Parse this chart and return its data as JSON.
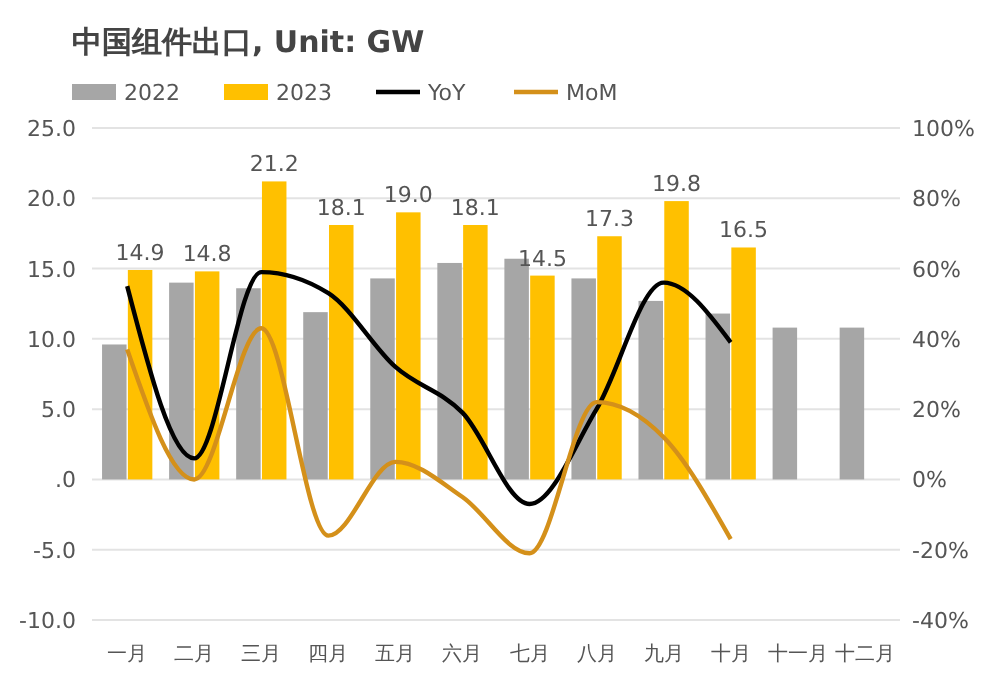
{
  "chart_data": {
    "type": "bar",
    "title": "中国组件出口, Unit: GW",
    "categories": [
      "一月",
      "二月",
      "三月",
      "四月",
      "五月",
      "六月",
      "七月",
      "八月",
      "九月",
      "十月",
      "十一月",
      "十二月"
    ],
    "series": [
      {
        "name": "2022",
        "color": "#a6a6a6",
        "values": [
          9.6,
          14.0,
          13.6,
          11.9,
          14.3,
          15.4,
          15.7,
          14.3,
          12.7,
          11.8,
          10.8,
          10.8
        ]
      },
      {
        "name": "2023",
        "color": "#ffc000",
        "values": [
          14.9,
          14.8,
          21.2,
          18.1,
          19.0,
          18.1,
          14.5,
          17.3,
          19.8,
          16.5,
          null,
          null
        ],
        "value_labels": [
          "14.9",
          "14.8",
          "21.2",
          "18.1",
          "19.0",
          "18.1",
          "14.5",
          "17.3",
          "19.8",
          "16.5",
          null,
          null
        ]
      },
      {
        "name": "YoY",
        "type": "line",
        "axis": "y2",
        "color": "#000000",
        "values": [
          55,
          6,
          59,
          53,
          32,
          19,
          -7,
          20,
          56,
          39,
          null,
          null
        ]
      },
      {
        "name": "MoM",
        "type": "line",
        "axis": "y2",
        "color": "#d4901a",
        "values": [
          37,
          0,
          43,
          -16,
          5,
          -5,
          -21,
          22,
          12,
          -17,
          null,
          null
        ]
      }
    ],
    "ylim": [
      -10,
      25
    ],
    "yticks": [
      {
        "value": -10,
        "label": "-10.0"
      },
      {
        "value": -5,
        "label": "-5.0"
      },
      {
        "value": 0,
        "label": ".0"
      },
      {
        "value": 5,
        "label": "5.0"
      },
      {
        "value": 10,
        "label": "10.0"
      },
      {
        "value": 15,
        "label": "15.0"
      },
      {
        "value": 20,
        "label": "20.0"
      },
      {
        "value": 25,
        "label": "25.0"
      }
    ],
    "y2lim": [
      -40,
      100
    ],
    "y2ticks": [
      {
        "value": -40,
        "label": "-40%"
      },
      {
        "value": -20,
        "label": "-20%"
      },
      {
        "value": 0,
        "label": "0%"
      },
      {
        "value": 20,
        "label": "20%"
      },
      {
        "value": 40,
        "label": "40%"
      },
      {
        "value": 60,
        "label": "60%"
      },
      {
        "value": 80,
        "label": "80%"
      },
      {
        "value": 100,
        "label": "100%"
      }
    ],
    "grid": "y",
    "legend": "top left",
    "line_style": "solid",
    "marker": "none"
  }
}
